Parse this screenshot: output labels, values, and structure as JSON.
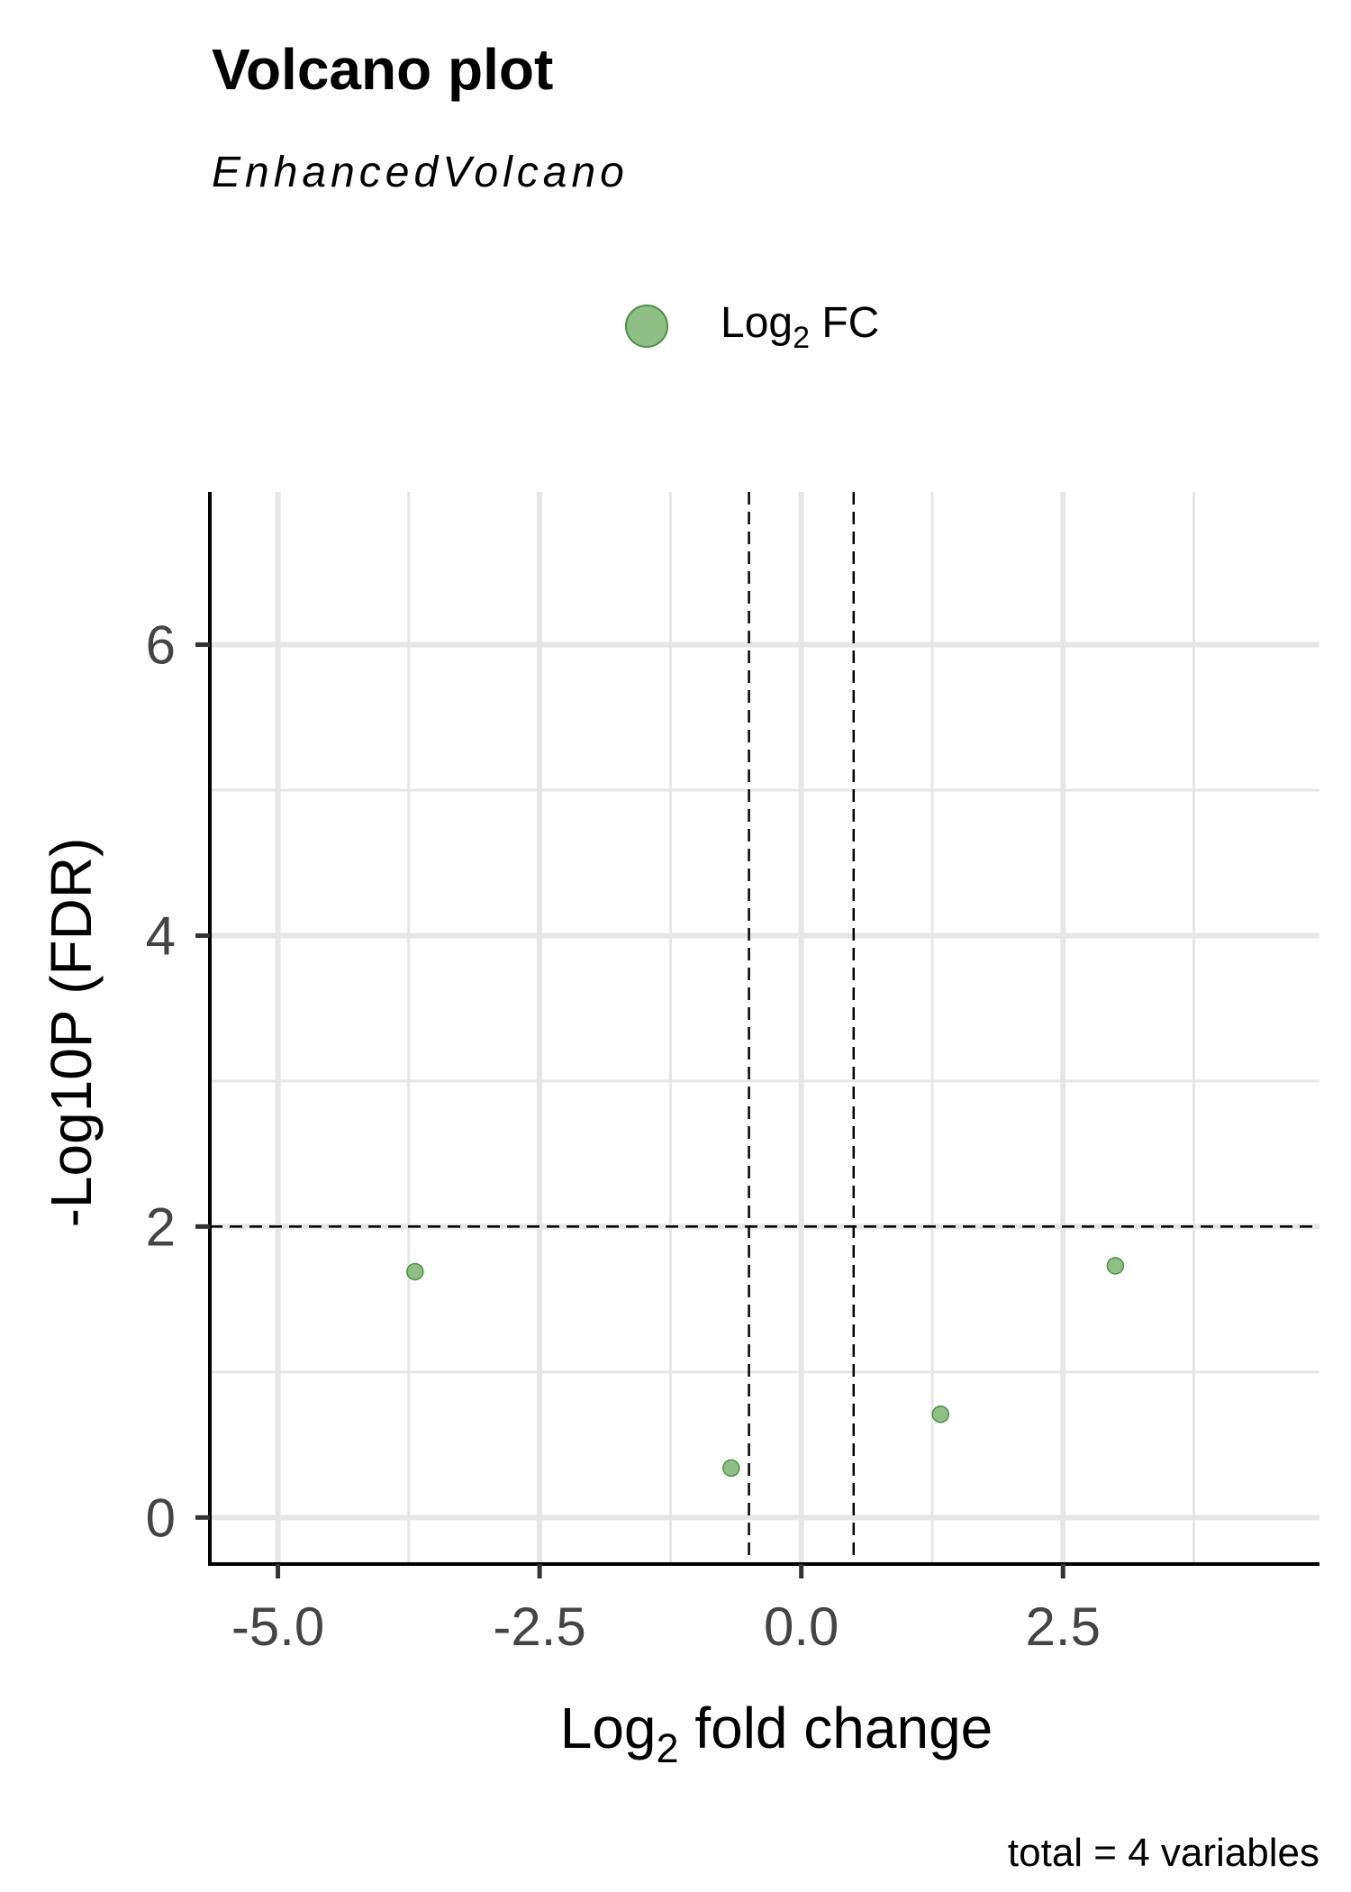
{
  "chart_data": {
    "type": "scatter",
    "title": "Volcano plot",
    "subtitle": "EnhancedVolcano",
    "legend": {
      "placement": "top",
      "label_main": "Log",
      "label_sub": "2",
      "label_tail": " FC",
      "color": "#6aaa5f"
    },
    "xlabel_main": "Log",
    "xlabel_sub": "2",
    "xlabel_tail": " fold change",
    "ylabel": "-Log10P (FDR)",
    "caption": "total = 4 variables",
    "xlim": [
      -5.65,
      4.95
    ],
    "ylim": [
      -0.32,
      7.05
    ],
    "x_ticks": [
      -5.0,
      -2.5,
      0.0,
      2.5
    ],
    "x_tick_labels": [
      "-5.0",
      "-2.5",
      "0.0",
      "2.5"
    ],
    "x_minor_gridlines": [
      -3.75,
      -1.25,
      1.25,
      3.75
    ],
    "y_ticks": [
      0,
      2,
      4,
      6
    ],
    "y_tick_labels": [
      "0",
      "2",
      "4",
      "6"
    ],
    "y_minor_gridlines": [
      1,
      3,
      5
    ],
    "fc_cutoff": [
      -0.5,
      0.5
    ],
    "p_cutoff": 2,
    "grid": true,
    "point_color": "#6aaa5f",
    "series": [
      {
        "name": "Log2 FC",
        "points": [
          {
            "x": -3.69,
            "y": 1.69
          },
          {
            "x": -0.67,
            "y": 0.34
          },
          {
            "x": 1.33,
            "y": 0.71
          },
          {
            "x": 3.0,
            "y": 1.73
          }
        ]
      }
    ]
  }
}
